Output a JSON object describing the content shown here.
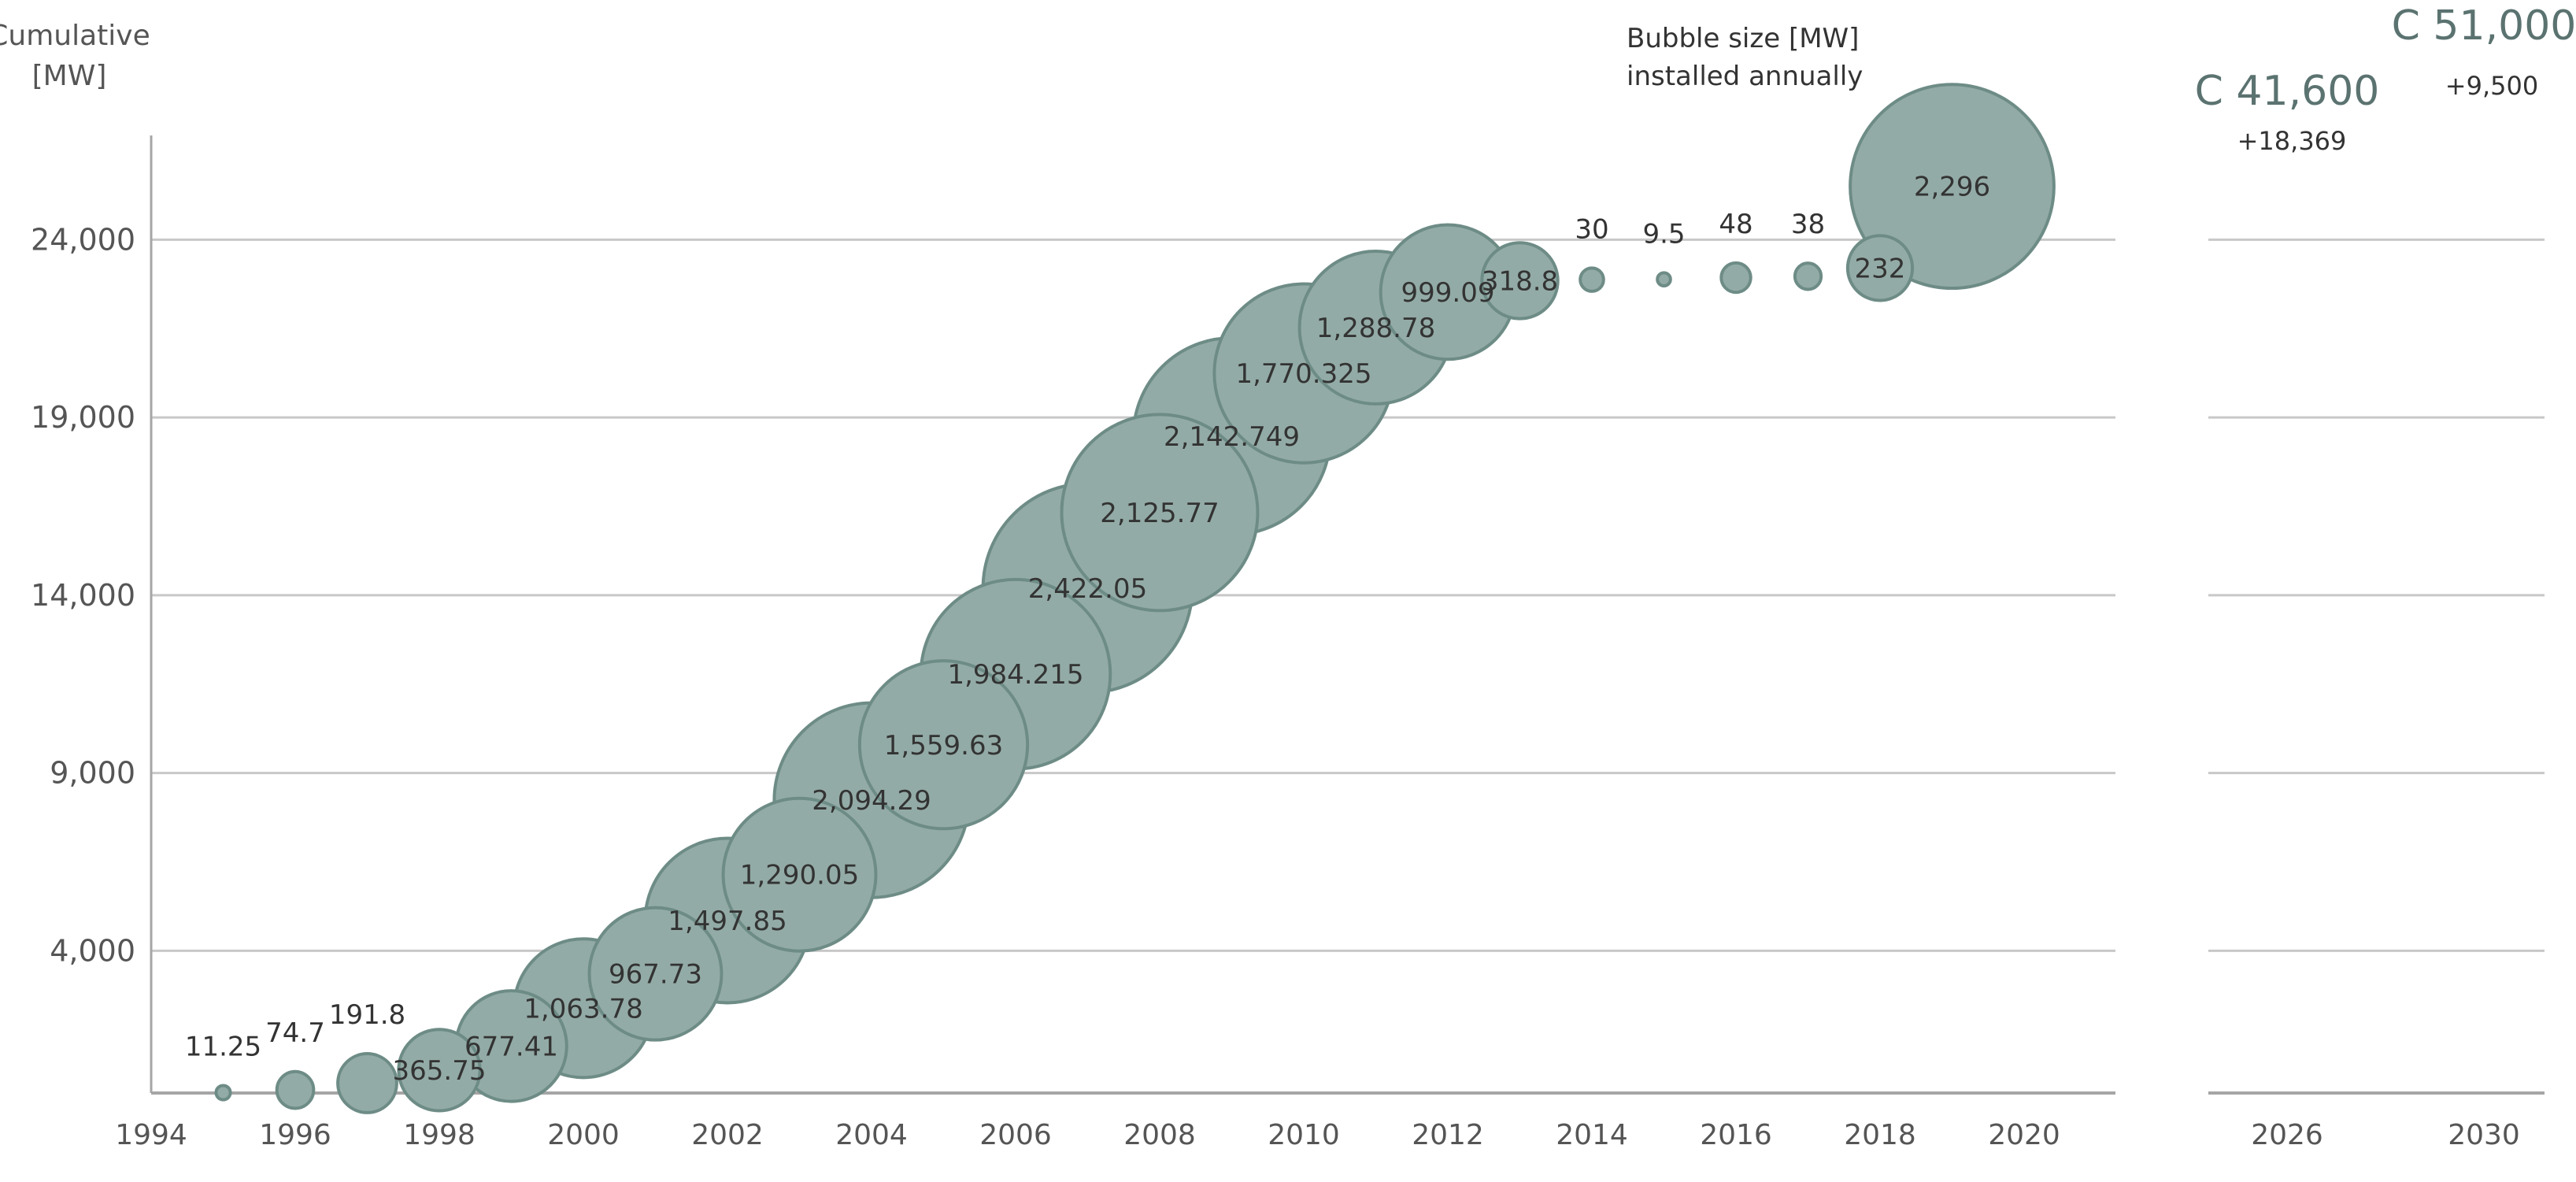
{
  "chart_data": {
    "type": "bubble",
    "ylabel_line1": "Cumulative",
    "ylabel_line2": "[MW]",
    "legend_line1": "Bubble size [MW]",
    "legend_line2": "installed annually",
    "xlim": [
      1994,
      2020
    ],
    "ylim": [
      0,
      27000
    ],
    "y_ticks": [
      4000,
      9000,
      14000,
      19000,
      24000
    ],
    "y_tick_labels": [
      "4,000",
      "9,000",
      "14,000",
      "19,000",
      "24,000"
    ],
    "x_ticks": [
      1994,
      1996,
      1998,
      2000,
      2002,
      2004,
      2006,
      2008,
      2010,
      2012,
      2014,
      2016,
      2018,
      2020
    ],
    "x_tick_labels": [
      "1994",
      "1996",
      "1998",
      "2000",
      "2002",
      "2004",
      "2006",
      "2008",
      "2010",
      "2012",
      "2014",
      "2016",
      "2018",
      "2020"
    ],
    "points": [
      {
        "year": 1995,
        "cumulative": 11,
        "annual": 11.25,
        "label": "11.25",
        "label_pos": "above"
      },
      {
        "year": 1996,
        "cumulative": 86,
        "annual": 74.7,
        "label": "74.7",
        "label_pos": "above"
      },
      {
        "year": 1997,
        "cumulative": 278,
        "annual": 191.8,
        "label": "191.8",
        "label_pos": "above"
      },
      {
        "year": 1998,
        "cumulative": 644,
        "annual": 365.75,
        "label": "365.75",
        "label_pos": "center"
      },
      {
        "year": 1999,
        "cumulative": 1321,
        "annual": 677.41,
        "label": "677.41",
        "label_pos": "center"
      },
      {
        "year": 2000,
        "cumulative": 2385,
        "annual": 1063.78,
        "label": "1,063.78",
        "label_pos": "center"
      },
      {
        "year": 2001,
        "cumulative": 3353,
        "annual": 967.73,
        "label": "967.73",
        "label_pos": "center"
      },
      {
        "year": 2002,
        "cumulative": 4851,
        "annual": 1497.85,
        "label": "1,497.85",
        "label_pos": "center"
      },
      {
        "year": 2003,
        "cumulative": 6141,
        "annual": 1290.05,
        "label": "1,290.05",
        "label_pos": "center"
      },
      {
        "year": 2004,
        "cumulative": 8235,
        "annual": 2094.29,
        "label": "2,094.29",
        "label_pos": "center"
      },
      {
        "year": 2005,
        "cumulative": 9795,
        "annual": 1559.63,
        "label": "1,559.63",
        "label_pos": "center"
      },
      {
        "year": 2006,
        "cumulative": 11779,
        "annual": 1984.215,
        "label": "1,984.215",
        "label_pos": "center"
      },
      {
        "year": 2007,
        "cumulative": 14201,
        "annual": 2422.05,
        "label": "2,422.05",
        "label_pos": "center"
      },
      {
        "year": 2008,
        "cumulative": 16327,
        "annual": 2125.77,
        "label": "2,125.77",
        "label_pos": "center"
      },
      {
        "year": 2009,
        "cumulative": 18470,
        "annual": 2142.749,
        "label": "2,142.749",
        "label_pos": "center"
      },
      {
        "year": 2010,
        "cumulative": 20240,
        "annual": 1770.325,
        "label": "1,770.325",
        "label_pos": "center"
      },
      {
        "year": 2011,
        "cumulative": 21529,
        "annual": 1288.78,
        "label": "1,288.78",
        "label_pos": "center"
      },
      {
        "year": 2012,
        "cumulative": 22528,
        "annual": 999.09,
        "label": "999.09",
        "label_pos": "center"
      },
      {
        "year": 2013,
        "cumulative": 22847,
        "annual": 318.8,
        "label": "318.8",
        "label_pos": "center"
      },
      {
        "year": 2014,
        "cumulative": 22877,
        "annual": 30,
        "label": "30",
        "label_pos": "above"
      },
      {
        "year": 2015,
        "cumulative": 22886,
        "annual": 9.5,
        "label": "9.5",
        "label_pos": "above"
      },
      {
        "year": 2016,
        "cumulative": 22934,
        "annual": 48,
        "label": "48",
        "label_pos": "above"
      },
      {
        "year": 2017,
        "cumulative": 22972,
        "annual": 38,
        "label": "38",
        "label_pos": "above"
      },
      {
        "year": 2018,
        "cumulative": 23204,
        "annual": 232,
        "label": "232",
        "label_pos": "center"
      },
      {
        "year": 2019,
        "cumulative": 25500,
        "annual": 2296,
        "label": "2,296",
        "label_pos": "center"
      }
    ],
    "projection": {
      "x_tick_labels": [
        "2026",
        "2030"
      ],
      "targets": [
        {
          "year": 2026,
          "label": "C 41,600",
          "delta": "+18,369"
        },
        {
          "year": 2030,
          "label": "C 51,000",
          "delta": "+9,500"
        }
      ]
    },
    "colors": {
      "bubble_fill": "#93aba6",
      "bubble_stroke": "#6e8c86",
      "grid": "#c8c8c8",
      "axis": "#a6a6a6",
      "projection_text": "#5b7370"
    }
  }
}
